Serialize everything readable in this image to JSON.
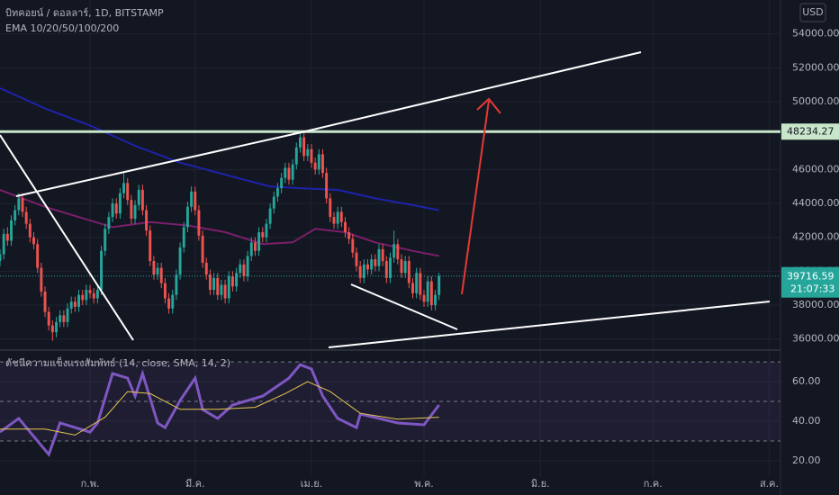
{
  "chart_data": [
    {
      "type": "candlestick",
      "title": "บิทคอยน์ / ดอลลาร์, 1D, BITSTAMP",
      "subtitle": "EMA 10/20/50/100/200",
      "currency": "USD",
      "countdown": "21:07:33",
      "up_color": "#26a69a",
      "down_color": "#ef5350",
      "x": [
        0,
        1,
        2,
        3,
        4,
        5,
        6,
        7,
        8,
        9,
        10,
        11,
        12,
        13,
        14,
        15,
        16,
        17,
        18,
        19,
        20,
        21,
        22,
        23,
        24,
        25,
        26,
        27,
        28,
        29,
        30,
        31,
        32,
        33,
        34,
        35,
        36,
        37,
        38,
        39,
        40,
        41,
        42,
        43,
        44,
        45,
        46,
        47,
        48,
        49,
        50,
        51,
        52,
        53,
        54,
        55,
        56,
        57,
        58,
        59,
        60,
        61,
        62,
        63,
        64,
        65,
        66,
        67,
        68,
        69,
        70,
        71,
        72,
        73,
        74,
        75,
        76,
        77,
        78,
        79,
        80,
        81,
        82,
        83,
        84,
        85,
        86,
        87,
        88,
        89,
        90,
        91,
        92,
        93,
        94,
        95,
        96,
        97,
        98,
        99,
        100,
        101,
        102,
        103,
        104,
        105,
        106,
        107,
        108,
        109,
        110,
        111,
        112,
        113,
        114,
        115,
        116,
        117
      ],
      "ohlc": [
        [
          40600,
          41300,
          40300,
          41000
        ],
        [
          41000,
          42500,
          40700,
          42200
        ],
        [
          42200,
          42600,
          41500,
          41800
        ],
        [
          41800,
          43300,
          41500,
          43000
        ],
        [
          43000,
          43900,
          42700,
          43600
        ],
        [
          43600,
          44600,
          43300,
          44300
        ],
        [
          44300,
          44600,
          43200,
          43500
        ],
        [
          43500,
          43800,
          42500,
          42800
        ],
        [
          42800,
          43100,
          41700,
          42000
        ],
        [
          42000,
          42300,
          41300,
          41600
        ],
        [
          41600,
          41900,
          39900,
          40200
        ],
        [
          40200,
          40500,
          38500,
          38800
        ],
        [
          38800,
          39100,
          37300,
          37600
        ],
        [
          37600,
          37900,
          36500,
          36800
        ],
        [
          36800,
          37100,
          35900,
          36400
        ],
        [
          36400,
          37300,
          36100,
          37000
        ],
        [
          37000,
          37700,
          36700,
          37400
        ],
        [
          37400,
          37700,
          36700,
          37000
        ],
        [
          37000,
          38100,
          36700,
          37800
        ],
        [
          37800,
          38500,
          37500,
          38200
        ],
        [
          38200,
          38500,
          37600,
          37900
        ],
        [
          37900,
          38900,
          37600,
          38600
        ],
        [
          38600,
          38900,
          38000,
          38300
        ],
        [
          38300,
          39200,
          38000,
          38900
        ],
        [
          38900,
          39200,
          38400,
          38700
        ],
        [
          38700,
          39000,
          38100,
          38400
        ],
        [
          38400,
          39200,
          38100,
          38900
        ],
        [
          38900,
          41500,
          38600,
          41200
        ],
        [
          41200,
          42800,
          40900,
          42500
        ],
        [
          42500,
          43500,
          42200,
          43200
        ],
        [
          43200,
          44300,
          42900,
          44000
        ],
        [
          44000,
          44300,
          43100,
          43400
        ],
        [
          43400,
          44900,
          43100,
          44600
        ],
        [
          44600,
          45800,
          44300,
          45200
        ],
        [
          45200,
          45500,
          43900,
          44200
        ],
        [
          44200,
          44500,
          42800,
          43100
        ],
        [
          43100,
          44200,
          42800,
          43900
        ],
        [
          43900,
          45100,
          43600,
          44800
        ],
        [
          44800,
          45100,
          43300,
          43600
        ],
        [
          43600,
          43900,
          42100,
          42400
        ],
        [
          42400,
          42700,
          40300,
          40600
        ],
        [
          40600,
          40900,
          39500,
          39800
        ],
        [
          39800,
          40500,
          39500,
          40200
        ],
        [
          40200,
          40500,
          39000,
          39300
        ],
        [
          39300,
          39600,
          38100,
          38400
        ],
        [
          38400,
          38700,
          37500,
          37800
        ],
        [
          37800,
          38900,
          37500,
          38600
        ],
        [
          38600,
          40100,
          38300,
          39800
        ],
        [
          39800,
          41700,
          39500,
          41400
        ],
        [
          41400,
          42900,
          41100,
          42600
        ],
        [
          42600,
          44100,
          42300,
          43800
        ],
        [
          43800,
          45000,
          43500,
          44700
        ],
        [
          44700,
          45000,
          43300,
          43600
        ],
        [
          43600,
          43900,
          41800,
          42100
        ],
        [
          42100,
          42400,
          40200,
          40500
        ],
        [
          40500,
          40800,
          39500,
          39800
        ],
        [
          39800,
          40100,
          38600,
          38900
        ],
        [
          38900,
          39900,
          38600,
          39600
        ],
        [
          39600,
          39900,
          38300,
          38600
        ],
        [
          38600,
          39500,
          38300,
          39200
        ],
        [
          39200,
          39500,
          38100,
          38400
        ],
        [
          38400,
          40000,
          38100,
          39700
        ],
        [
          39700,
          40000,
          38800,
          39100
        ],
        [
          39100,
          40200,
          38800,
          39900
        ],
        [
          39900,
          40700,
          39600,
          40400
        ],
        [
          40400,
          40700,
          39400,
          39700
        ],
        [
          39700,
          41200,
          39400,
          40900
        ],
        [
          40900,
          42000,
          40600,
          41700
        ],
        [
          41700,
          42000,
          40900,
          41200
        ],
        [
          41200,
          42600,
          40900,
          42300
        ],
        [
          42300,
          42600,
          41700,
          42000
        ],
        [
          42000,
          43100,
          41700,
          42800
        ],
        [
          42800,
          44000,
          42500,
          43700
        ],
        [
          43700,
          44700,
          43400,
          44400
        ],
        [
          44400,
          45200,
          44100,
          44900
        ],
        [
          44900,
          45800,
          44600,
          45500
        ],
        [
          45500,
          46400,
          45200,
          46100
        ],
        [
          46100,
          46400,
          45100,
          45400
        ],
        [
          45400,
          46600,
          45100,
          46300
        ],
        [
          46300,
          47600,
          46000,
          47300
        ],
        [
          47300,
          48200,
          47000,
          47900
        ],
        [
          47900,
          48200,
          46500,
          46800
        ],
        [
          46800,
          47500,
          46500,
          47200
        ],
        [
          47200,
          47500,
          46100,
          46400
        ],
        [
          46400,
          46700,
          45700,
          46000
        ],
        [
          46000,
          47200,
          45700,
          46900
        ],
        [
          46900,
          47200,
          45500,
          45800
        ],
        [
          45800,
          46100,
          44000,
          44300
        ],
        [
          44300,
          44600,
          42900,
          43200
        ],
        [
          43200,
          43500,
          42500,
          42800
        ],
        [
          42800,
          43800,
          42500,
          43500
        ],
        [
          43500,
          43800,
          42600,
          42900
        ],
        [
          42900,
          43200,
          42000,
          42300
        ],
        [
          42300,
          42600,
          41600,
          41900
        ],
        [
          41900,
          42200,
          40800,
          41100
        ],
        [
          41100,
          41400,
          40000,
          40300
        ],
        [
          40300,
          40600,
          39300,
          39600
        ],
        [
          39600,
          40700,
          39300,
          40400
        ],
        [
          40400,
          40700,
          39800,
          40100
        ],
        [
          40100,
          41000,
          39800,
          40700
        ],
        [
          40700,
          41000,
          40000,
          40300
        ],
        [
          40300,
          41600,
          40000,
          41300
        ],
        [
          41300,
          41600,
          40300,
          40600
        ],
        [
          40600,
          40900,
          39300,
          39600
        ],
        [
          39600,
          41100,
          39300,
          40800
        ],
        [
          40800,
          42400,
          40500,
          41600
        ],
        [
          41600,
          41900,
          40400,
          40700
        ],
        [
          40700,
          41000,
          39600,
          39900
        ],
        [
          39900,
          40900,
          39600,
          40600
        ],
        [
          40600,
          40900,
          39000,
          39300
        ],
        [
          39300,
          39600,
          38400,
          38700
        ],
        [
          38700,
          40200,
          38400,
          39900
        ],
        [
          39900,
          40200,
          38300,
          38600
        ],
        [
          38600,
          38900,
          37900,
          38200
        ],
        [
          38200,
          39700,
          37900,
          39400
        ],
        [
          39400,
          39700,
          37700,
          38000
        ],
        [
          38000,
          38900,
          37700,
          38600
        ],
        [
          38600,
          39900,
          38300,
          39716.59
        ]
      ],
      "series": [
        {
          "color": "#1e22aa",
          "x": [
            0,
            12,
            24,
            36,
            48,
            60,
            72,
            80,
            90,
            100,
            110,
            117
          ],
          "values": [
            50800,
            49600,
            48600,
            47400,
            46400,
            45700,
            45000,
            44900,
            44800,
            44300,
            43900,
            43600
          ]
        },
        {
          "color": "#7b1f6a",
          "x": [
            0,
            12,
            24,
            30,
            40,
            50,
            60,
            70,
            78,
            84,
            92,
            100,
            110,
            117
          ],
          "values": [
            44800,
            43800,
            43000,
            42600,
            42900,
            42700,
            42300,
            41600,
            41700,
            42500,
            42300,
            41700,
            41200,
            40900
          ]
        }
      ],
      "price_line": {
        "value": 48234.27,
        "color": "#c8e6c9"
      },
      "xlim": [
        0,
        208
      ],
      "xticks": [
        {
          "value": 24,
          "label": "ก.พ."
        },
        {
          "value": 52,
          "label": "มี.ค."
        },
        {
          "value": 83,
          "label": "เม.ย."
        },
        {
          "value": 113,
          "label": "พ.ค."
        },
        {
          "value": 144,
          "label": "มิ.ย."
        },
        {
          "value": 174,
          "label": "ก.ค."
        },
        {
          "value": 205,
          "label": "ส.ค."
        }
      ],
      "ylim": [
        35400,
        56000
      ],
      "yticks": [
        {
          "value": 36000,
          "label": "36000.00"
        },
        {
          "value": 38000,
          "label": "38000.00"
        },
        {
          "value": 40000,
          "label": "40000.00"
        },
        {
          "value": 42000,
          "label": "42000.00"
        },
        {
          "value": 44000,
          "label": "44000.00"
        },
        {
          "value": 46000,
          "label": "46000.00"
        },
        {
          "value": 50000,
          "label": "50000.00"
        },
        {
          "value": 52000,
          "label": "52000.00"
        },
        {
          "value": 54000,
          "label": "54000.00"
        }
      ]
    },
    {
      "type": "line",
      "title": "ดัชนีความแข็งแรงสัมพัทธ์ (14, close, SMA, 14, 2)",
      "series": [
        {
          "color": "#7e57c2",
          "x": [
            0,
            5,
            13,
            16,
            24,
            26,
            30,
            34,
            36,
            38,
            42,
            44,
            48,
            52,
            54,
            58,
            62,
            70,
            77,
            80,
            83,
            86,
            90,
            95,
            96,
            101,
            106,
            113,
            117
          ],
          "values": [
            34.5,
            41.4,
            23.2,
            39.1,
            34.5,
            39.1,
            64.1,
            61.8,
            52.7,
            64.1,
            39.1,
            36.8,
            50.5,
            61.8,
            45.9,
            41.4,
            48.2,
            52.7,
            61.8,
            68.6,
            66.4,
            52.7,
            41.4,
            36.8,
            43.6,
            41.4,
            39.1,
            38.2,
            48.2
          ]
        },
        {
          "color": "#e6c84e",
          "x": [
            0,
            12,
            20,
            28,
            34,
            40,
            48,
            58,
            68,
            76,
            82,
            88,
            96,
            106,
            117
          ],
          "values": [
            36,
            36,
            33,
            42,
            55,
            54,
            46,
            46,
            47,
            54,
            60,
            55,
            44,
            41,
            42
          ]
        }
      ],
      "band": [
        30,
        70
      ],
      "midline": 50,
      "xlim": [
        0,
        208
      ],
      "ylim": [
        11.8,
        75.5
      ],
      "yticks": [
        {
          "value": 20,
          "label": "20.00"
        },
        {
          "value": 40,
          "label": "40.00"
        },
        {
          "value": 60,
          "label": "60.00"
        }
      ]
    }
  ]
}
